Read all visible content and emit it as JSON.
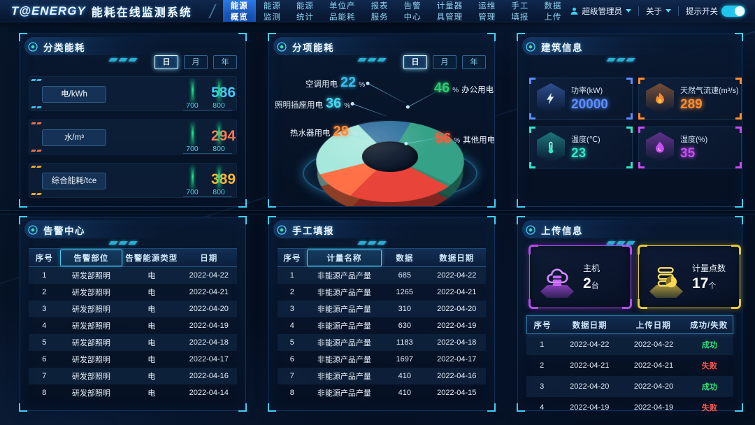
{
  "app": {
    "logo_text": "T@ENERGY",
    "title": "能耗在线监测系统"
  },
  "topbar": {
    "nav_items": [
      {
        "label": "能源概览",
        "active": true
      },
      {
        "label": "能源监测",
        "active": false
      },
      {
        "label": "能源统计",
        "active": false
      },
      {
        "label": "单位产品能耗",
        "active": false
      },
      {
        "label": "报表服务",
        "active": false
      },
      {
        "label": "告警中心",
        "active": false
      },
      {
        "label": "计量器具管理",
        "active": false
      },
      {
        "label": "运维管理",
        "active": false
      },
      {
        "label": "手工填报",
        "active": false
      },
      {
        "label": "数据上传",
        "active": false
      }
    ],
    "user": {
      "name": "超级管理员"
    },
    "about_label": "关于",
    "toggle": {
      "label": "提示开关",
      "state": "on"
    }
  },
  "panels": {
    "classification": {
      "title": "分类能耗",
      "tabs": [
        {
          "label": "日",
          "active": true
        },
        {
          "label": "月",
          "active": false
        },
        {
          "label": "年",
          "active": false
        }
      ],
      "axis_max": 800,
      "rows": [
        {
          "label": "电/kWh",
          "value": 586,
          "display": "586",
          "color": "#45c8f5",
          "axis_ticks": [
            "700",
            "800"
          ]
        },
        {
          "label": "水/m³",
          "value": 294,
          "display": "294",
          "color": "#ff7a50",
          "axis_ticks": [
            "700",
            "800"
          ]
        },
        {
          "label": "综合能耗/tce",
          "value": 389,
          "display": "389",
          "color": "#ffb62e",
          "axis_ticks": [
            "700",
            "800"
          ]
        }
      ]
    },
    "subitem": {
      "title": "分项能耗",
      "tabs": [
        {
          "label": "日",
          "active": true
        },
        {
          "label": "月",
          "active": false
        },
        {
          "label": "年",
          "active": false
        }
      ],
      "slices": [
        {
          "label": "空调用电",
          "value": "22",
          "unit": "%",
          "color": "#38c0f0"
        },
        {
          "label": "照明插座用电",
          "value": "36",
          "unit": "%",
          "color": "#45d8f0"
        },
        {
          "label": "热水器用电",
          "value": "28",
          "unit": "%",
          "color": "#ff8c3a"
        },
        {
          "label": "办公用电",
          "value": "46",
          "unit": "%",
          "color": "#2ecc71"
        },
        {
          "label": "其他用电",
          "value": "56",
          "unit": "%",
          "color": "#ff5a3c"
        }
      ]
    },
    "building": {
      "title": "建筑信息",
      "cards": [
        {
          "label": "功率(kW)",
          "value": "20000",
          "accent": "#5a8dff",
          "icon": "power-icon"
        },
        {
          "label": "天然气流速(m³/s)",
          "value": "289",
          "accent": "#ff8c2e",
          "icon": "flame-icon"
        },
        {
          "label": "温度(℃)",
          "value": "23",
          "accent": "#2ee6c8",
          "icon": "thermometer-icon"
        },
        {
          "label": "湿度(%)",
          "value": "35",
          "accent": "#c94df5",
          "icon": "droplet-icon"
        }
      ]
    },
    "alarm": {
      "title": "告警中心",
      "table": {
        "headers": [
          {
            "label": "序号"
          },
          {
            "label": "告警部位",
            "boxed": true
          },
          {
            "label": "告警能源类型"
          },
          {
            "label": "日期"
          }
        ],
        "widths": [
          "15%",
          "30%",
          "28%",
          "27%"
        ],
        "rows": [
          [
            "1",
            "研发部照明",
            "电",
            "2022-04-22"
          ],
          [
            "2",
            "研发部照明",
            "电",
            "2022-04-21"
          ],
          [
            "3",
            "研发部照明",
            "电",
            "2022-04-20"
          ],
          [
            "4",
            "研发部照明",
            "电",
            "2022-04-19"
          ],
          [
            "5",
            "研发部照明",
            "电",
            "2022-04-18"
          ],
          [
            "6",
            "研发部照明",
            "电",
            "2022-04-17"
          ],
          [
            "7",
            "研发部照明",
            "电",
            "2022-04-16"
          ],
          [
            "8",
            "研发部照明",
            "电",
            "2022-04-14"
          ]
        ]
      }
    },
    "manual": {
      "title": "手工填报",
      "table": {
        "headers": [
          {
            "label": "序号"
          },
          {
            "label": "计量名称",
            "boxed": true
          },
          {
            "label": "数据"
          },
          {
            "label": "数据日期"
          }
        ],
        "widths": [
          "14%",
          "36%",
          "22%",
          "28%"
        ],
        "rows": [
          [
            "1",
            "非能源产品产量",
            "685",
            "2022-04-22"
          ],
          [
            "2",
            "非能源产品产量",
            "1265",
            "2022-04-21"
          ],
          [
            "3",
            "非能源产品产量",
            "310",
            "2022-04-20"
          ],
          [
            "4",
            "非能源产品产量",
            "630",
            "2022-04-19"
          ],
          [
            "5",
            "非能源产品产量",
            "1183",
            "2022-04-18"
          ],
          [
            "6",
            "非能源产品产量",
            "1697",
            "2022-04-17"
          ],
          [
            "7",
            "非能源产品产量",
            "410",
            "2022-04-16"
          ],
          [
            "8",
            "非能源产品产量",
            "410",
            "2022-04-15"
          ]
        ]
      }
    },
    "upload": {
      "title": "上传信息",
      "cards": [
        {
          "label": "主机",
          "value": "2",
          "unit": "台",
          "accent": "#b44df0",
          "icon": "cloud-server-icon"
        },
        {
          "label": "计量点数",
          "value": "17",
          "unit": "个",
          "accent": "#e3c63c",
          "icon": "meter-count-icon"
        }
      ],
      "table": {
        "header_boxed": true,
        "headers": [
          {
            "label": "序号"
          },
          {
            "label": "数据日期"
          },
          {
            "label": "上传日期"
          },
          {
            "label": "成功/失败"
          }
        ],
        "widths": [
          "15%",
          "31%",
          "31%",
          "23%"
        ],
        "value_colors": {
          "成功": "#35e07a",
          "失败": "#ff5a4d"
        },
        "rows": [
          [
            "1",
            "2022-04-22",
            "2022-04-22",
            "成功"
          ],
          [
            "2",
            "2022-04-21",
            "2022-04-21",
            "失败"
          ],
          [
            "3",
            "2022-04-20",
            "2022-04-20",
            "成功"
          ],
          [
            "4",
            "2022-04-19",
            "2022-04-19",
            "失败"
          ]
        ]
      }
    }
  },
  "chart_data": [
    {
      "type": "bar",
      "title": "分类能耗",
      "orientation": "horizontal",
      "categories": [
        "电/kWh",
        "水/m³",
        "综合能耗/tce"
      ],
      "values": [
        586,
        294,
        389
      ],
      "axis_ticks": [
        700,
        800
      ],
      "xlim": [
        0,
        800
      ],
      "period_options": [
        "日",
        "月",
        "年"
      ],
      "selected_period": "日"
    },
    {
      "type": "pie",
      "style": "3d-donut",
      "title": "分项能耗",
      "labels": [
        "空调用电",
        "照明插座用电",
        "热水器用电",
        "办公用电",
        "其他用电"
      ],
      "values": [
        22,
        36,
        28,
        46,
        56
      ],
      "unit": "%",
      "period_options": [
        "日",
        "月",
        "年"
      ],
      "selected_period": "日"
    }
  ]
}
